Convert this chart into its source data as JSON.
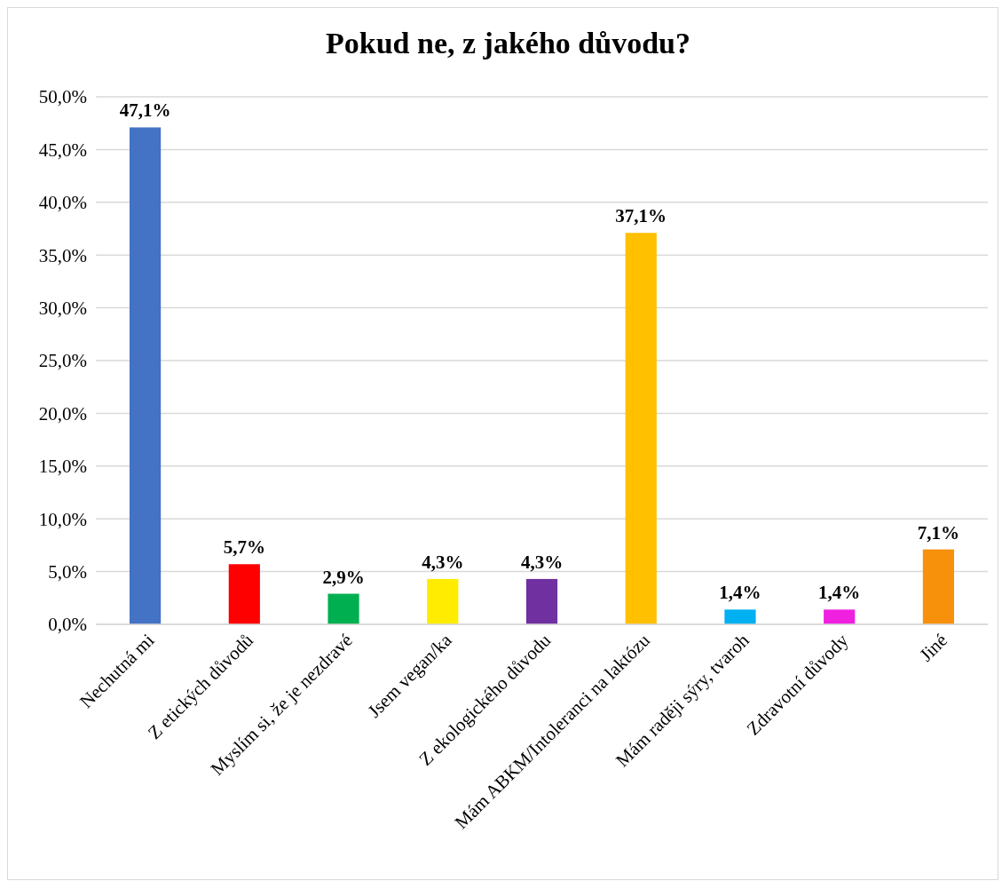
{
  "chart_data": {
    "type": "bar",
    "title": "Pokud ne, z jakého důvodu?",
    "categories": [
      "Nechutná mi",
      "Z etických důvodů",
      "Myslím si, že je nezdravé",
      "Jsem vegan/ka",
      "Z ekologického důvodu",
      "Mám ABKM/Intoleranci na laktózu",
      "Mám raději sýry, tvaroh",
      "Zdravotní důvody",
      "Jiné"
    ],
    "values": [
      47.1,
      5.7,
      2.9,
      4.3,
      4.3,
      37.1,
      1.4,
      1.4,
      7.1
    ],
    "value_labels": [
      "47,1%",
      "5,7%",
      "2,9%",
      "4,3%",
      "4,3%",
      "37,1%",
      "1,4%",
      "1,4%",
      "7,1%"
    ],
    "colors": [
      "#4472c4",
      "#ff0000",
      "#00b050",
      "#ffec00",
      "#7030a0",
      "#ffc000",
      "#00b0f0",
      "#f020e0",
      "#f7900a"
    ],
    "ylim": [
      0,
      50
    ],
    "yticks": [
      {
        "value": 0,
        "label": "0,0%"
      },
      {
        "value": 5,
        "label": "5,0%"
      },
      {
        "value": 10,
        "label": "10,0%"
      },
      {
        "value": 15,
        "label": "15,0%"
      },
      {
        "value": 20,
        "label": "20,0%"
      },
      {
        "value": 25,
        "label": "25,0%"
      },
      {
        "value": 30,
        "label": "30,0%"
      },
      {
        "value": 35,
        "label": "35,0%"
      },
      {
        "value": 40,
        "label": "40,0%"
      },
      {
        "value": 45,
        "label": "45,0%"
      },
      {
        "value": 50,
        "label": "50,0%"
      }
    ],
    "grid": "y"
  }
}
